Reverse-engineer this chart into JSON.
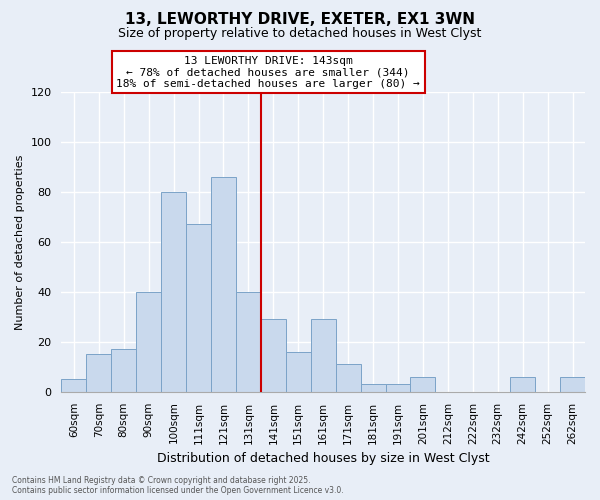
{
  "title": "13, LEWORTHY DRIVE, EXETER, EX1 3WN",
  "subtitle": "Size of property relative to detached houses in West Clyst",
  "xlabel": "Distribution of detached houses by size in West Clyst",
  "ylabel": "Number of detached properties",
  "bar_labels": [
    "60sqm",
    "70sqm",
    "80sqm",
    "90sqm",
    "100sqm",
    "111sqm",
    "121sqm",
    "131sqm",
    "141sqm",
    "151sqm",
    "161sqm",
    "171sqm",
    "181sqm",
    "191sqm",
    "201sqm",
    "212sqm",
    "222sqm",
    "232sqm",
    "242sqm",
    "252sqm",
    "262sqm"
  ],
  "bar_values": [
    5,
    15,
    17,
    40,
    80,
    67,
    86,
    40,
    29,
    16,
    29,
    11,
    3,
    3,
    6,
    0,
    0,
    0,
    6,
    0,
    6
  ],
  "bar_color": "#c9d9ed",
  "bar_edge_color": "#7ba3c8",
  "vline_index": 8,
  "vline_color": "#cc0000",
  "annotation_line1": "13 LEWORTHY DRIVE: 143sqm",
  "annotation_line2": "← 78% of detached houses are smaller (344)",
  "annotation_line3": "18% of semi-detached houses are larger (80) →",
  "annotation_box_edge": "#cc0000",
  "ylim": [
    0,
    120
  ],
  "yticks": [
    0,
    20,
    40,
    60,
    80,
    100,
    120
  ],
  "background_color": "#e8eef7",
  "grid_color": "#ffffff",
  "footer_line1": "Contains HM Land Registry data © Crown copyright and database right 2025.",
  "footer_line2": "Contains public sector information licensed under the Open Government Licence v3.0.",
  "title_fontsize": 11,
  "subtitle_fontsize": 9,
  "xlabel_fontsize": 9,
  "ylabel_fontsize": 8
}
